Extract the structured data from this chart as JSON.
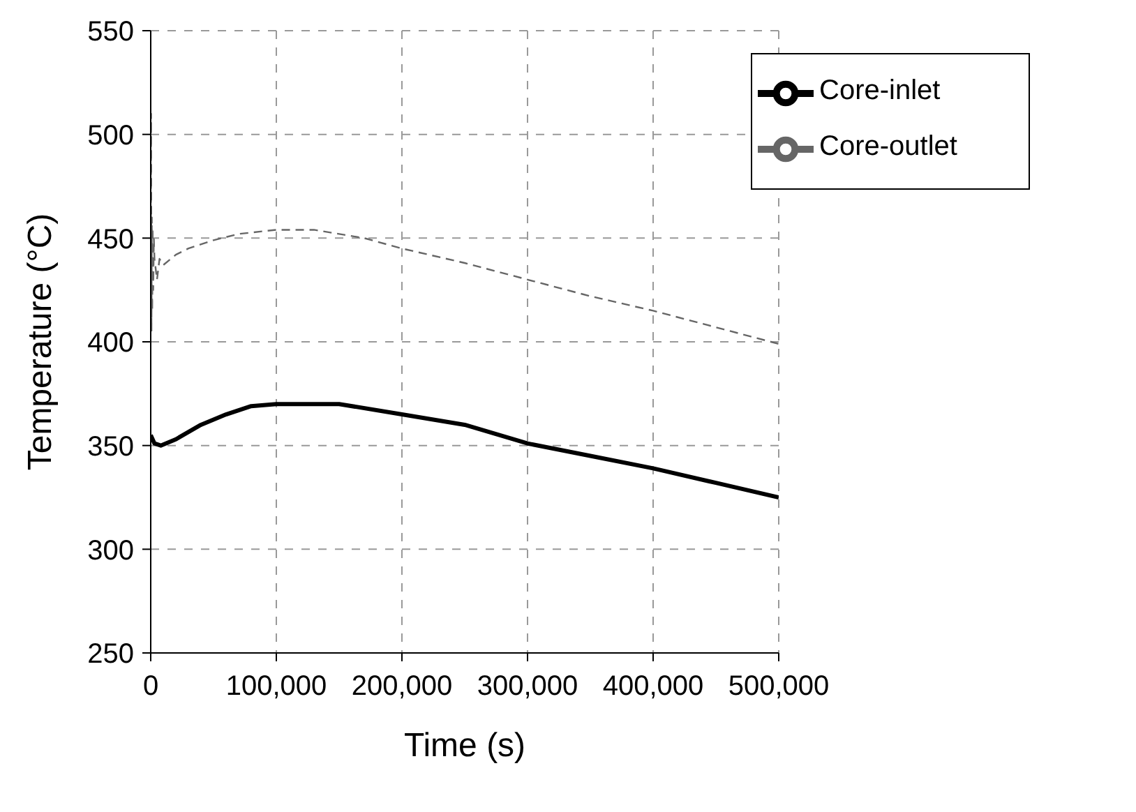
{
  "chart_data": {
    "type": "line",
    "xlabel": "Time (s)",
    "ylabel": "Temperature (°C)",
    "xlim": [
      0,
      500000
    ],
    "xticks": [
      {
        "value": 0,
        "label": "0"
      },
      {
        "value": 100000,
        "label": "100,000"
      },
      {
        "value": 200000,
        "label": "200,000"
      },
      {
        "value": 300000,
        "label": "300,000"
      },
      {
        "value": 400000,
        "label": "400,000"
      },
      {
        "value": 500000,
        "label": "500,000"
      }
    ],
    "ylim": [
      250,
      550
    ],
    "yticks": [
      250,
      300,
      350,
      400,
      450,
      500,
      550
    ],
    "grid": true,
    "legend": "top right",
    "marker": "none",
    "series": [
      {
        "name": "Core-inlet",
        "color": "#000000",
        "line_style": "solid",
        "x": [
          0,
          3000,
          8000,
          20000,
          40000,
          60000,
          80000,
          100000,
          130000,
          150000,
          200000,
          250000,
          300000,
          350000,
          400000,
          450000,
          500000
        ],
        "values": [
          355,
          351,
          350,
          353,
          360,
          365,
          369,
          370,
          370,
          370,
          365,
          360,
          351,
          345,
          339,
          332,
          325
        ]
      },
      {
        "name": "Core-outlet",
        "color": "#666666",
        "line_style": "dashed",
        "x": [
          0,
          300,
          600,
          900,
          1200,
          1500,
          2000,
          2500,
          3000,
          5000,
          7000,
          10000,
          20000,
          30000,
          50000,
          70000,
          100000,
          130000,
          170000,
          200000,
          250000,
          300000,
          350000,
          400000,
          450000,
          500000
        ],
        "values": [
          420,
          510,
          405,
          460,
          415,
          455,
          425,
          450,
          440,
          430,
          440,
          437,
          442,
          445,
          449,
          452,
          454,
          454,
          450,
          445,
          438,
          430,
          422,
          415,
          407,
          399
        ]
      }
    ]
  }
}
